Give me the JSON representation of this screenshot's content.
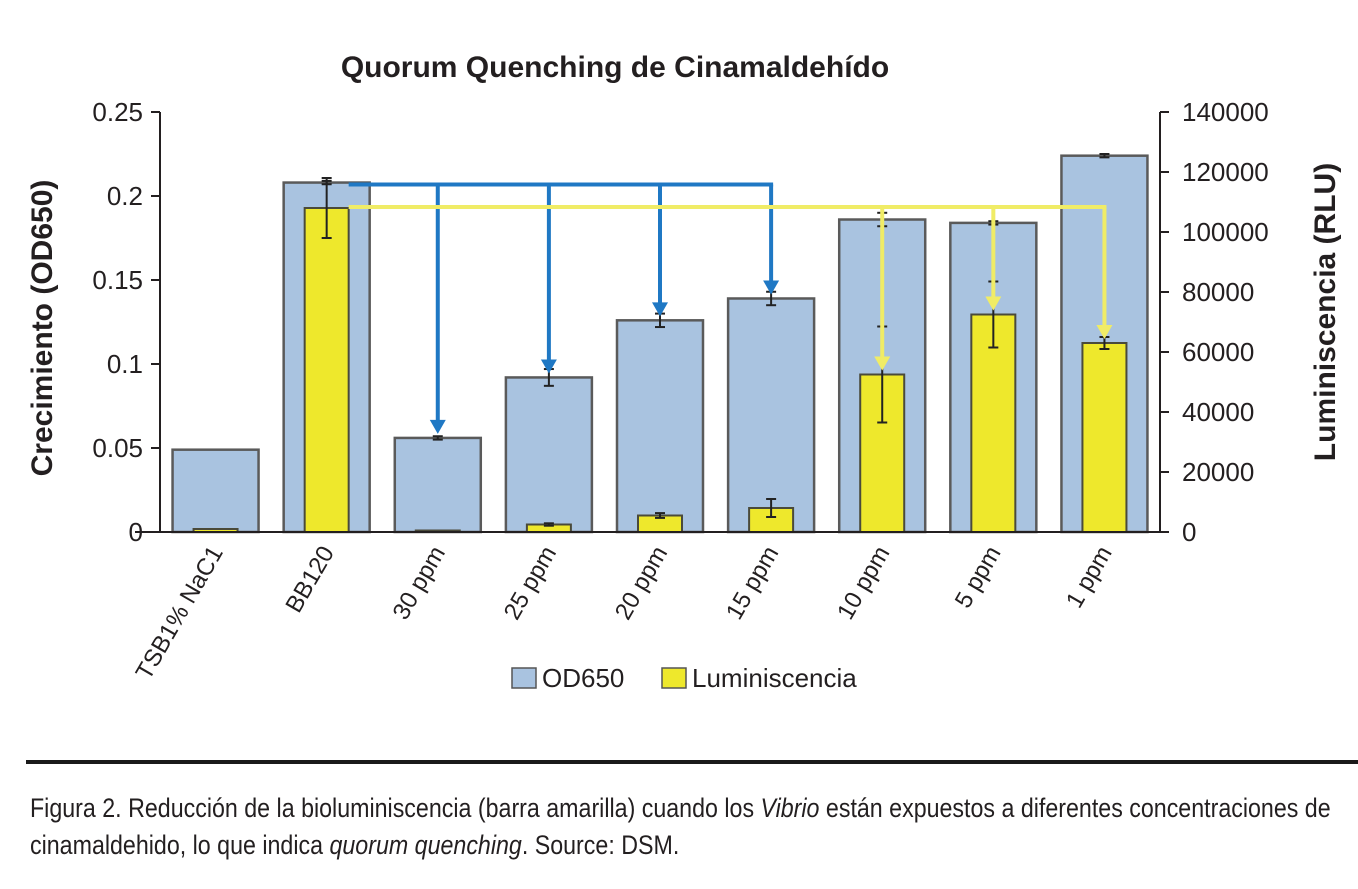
{
  "chart_data": {
    "type": "bar",
    "title": "Quorum Quenching de Cinamaldehído",
    "ylabel": "Crecimiento (OD650)",
    "y2label": "Luminiscencia (RLU)",
    "categories": [
      "TSB1% NaC1",
      "BB120",
      "30 ppm",
      "25 ppm",
      "20 ppm",
      "15 ppm",
      "10 ppm",
      "5 ppm",
      "1 ppm"
    ],
    "ylim": [
      0,
      0.25
    ],
    "y2lim": [
      0,
      140000
    ],
    "yticks": [
      "0",
      "0.05",
      "0.1",
      "0.15",
      "0.2",
      "0.25"
    ],
    "y2ticks": [
      "0",
      "20000",
      "40000",
      "60000",
      "80000",
      "100000",
      "120000",
      "140000"
    ],
    "series": [
      {
        "name": "OD650",
        "axis": "left",
        "color": "#a9c3e0",
        "values": [
          0.049,
          0.208,
          0.056,
          0.092,
          0.126,
          0.139,
          0.186,
          0.184,
          0.224
        ],
        "errors": [
          0,
          0.001,
          0.001,
          0.005,
          0.004,
          0.004,
          0.004,
          0.001,
          0.001
        ]
      },
      {
        "name": "Luminiscencia",
        "axis": "right",
        "color": "#eee82c",
        "values": [
          1000,
          108000,
          500,
          2500,
          5500,
          8000,
          52500,
          72500,
          63000
        ],
        "errors": [
          0,
          10000,
          0,
          400,
          800,
          3000,
          16000,
          11000,
          2000
        ]
      }
    ],
    "legend": "bottom-center",
    "grid": false,
    "annotations": {
      "blue_arrows": {
        "color": "#1f78c4",
        "from_od": 0.208,
        "to_categories": [
          "30 ppm",
          "25 ppm",
          "20 ppm",
          "15 ppm"
        ]
      },
      "yellow_arrows": {
        "color": "#f0ec66",
        "from_rlu": 108000,
        "to_categories": [
          "10 ppm",
          "5 ppm",
          "1 ppm"
        ]
      }
    }
  },
  "caption": {
    "lead": "Figura 2.",
    "part1": " Reducción de la bioluminiscencia (barra amarilla) cuando los ",
    "italic1": "Vibrio",
    "part2": " están expuestos a diferentes concentraciones de cinamaldehido, lo que indica ",
    "italic2": "quorum quenching",
    "part3": ". Source: DSM."
  }
}
